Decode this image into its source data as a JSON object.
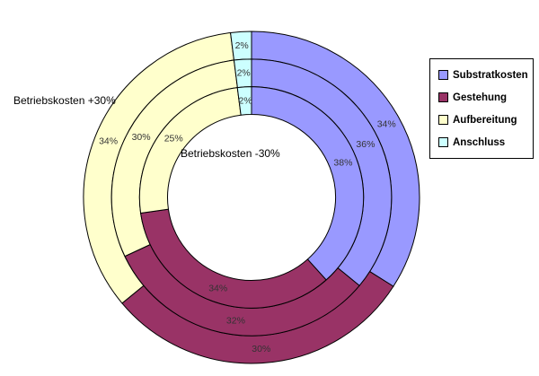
{
  "chart_data": {
    "type": "doughnut",
    "title": "",
    "categories": [
      "Substratkosten",
      "Gestehung",
      "Aufbereitung",
      "Anschluss"
    ],
    "colors": [
      "#9999FF",
      "#993366",
      "#FFFFCC",
      "#CCFFFF"
    ],
    "rings": [
      {
        "name": "Betriebskosten +30%",
        "position": "outer",
        "values": [
          34,
          30,
          34,
          2
        ]
      },
      {
        "name": "",
        "position": "middle",
        "values": [
          36,
          32,
          30,
          2
        ]
      },
      {
        "name": "Betriebskosten -30%",
        "position": "inner",
        "values": [
          38,
          34,
          25,
          2
        ]
      }
    ],
    "value_unit": "%",
    "label_format": "value%",
    "start_angle_deg": 0,
    "direction": "clockwise",
    "hole_fraction": 0.5,
    "grid": false,
    "legend_position": "right",
    "outline_color": "#000000",
    "label_color": "#333333",
    "background": "#ffffff"
  },
  "series_labels": {
    "outer": "Betriebskosten +30%",
    "inner": "Betriebskosten -30%"
  },
  "legend": {
    "items": [
      {
        "label": "Substratkosten",
        "color": "#9999FF"
      },
      {
        "label": "Gestehung",
        "color": "#993366"
      },
      {
        "label": "Aufbereitung",
        "color": "#FFFFCC"
      },
      {
        "label": "Anschluss",
        "color": "#CCFFFF"
      }
    ]
  }
}
